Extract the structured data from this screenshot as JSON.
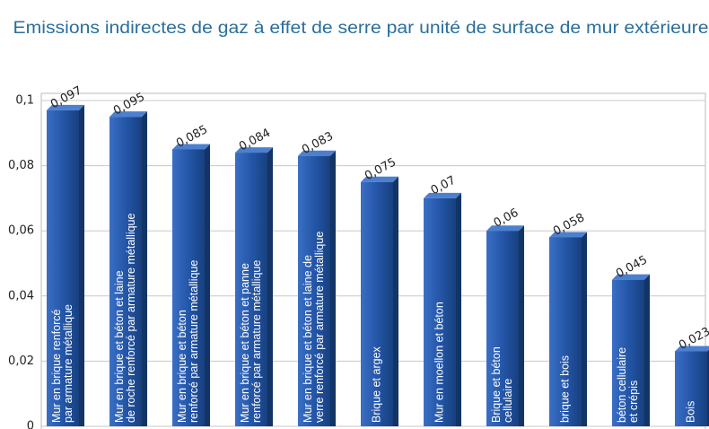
{
  "chart_data": {
    "type": "bar",
    "title": "Emissions  indirectes de gaz à effet de serre par unité de surface de mur extérieure",
    "categories": [
      [
        "Mur en brique renforcé",
        "par armature métallique"
      ],
      [
        "Mur en brique et béton et laine",
        "de roche renforcé par armature métallique"
      ],
      [
        "Mur en brique et béton",
        "renforcé par armature métallique"
      ],
      [
        "Mur en brique et béton et panne",
        "renforcé par armature métallique"
      ],
      [
        "Mur en brique et béton et laine de",
        "verre renforcé par armature métallique"
      ],
      [
        "Brique et argex"
      ],
      [
        "Mur en moellon et béton"
      ],
      [
        "Brique et béton",
        "cellulaire"
      ],
      [
        "brique et bois"
      ],
      [
        "béton cellulaire",
        "et crépis"
      ],
      [
        "Bois"
      ]
    ],
    "values": [
      0.097,
      0.095,
      0.085,
      0.084,
      0.083,
      0.075,
      0.07,
      0.06,
      0.058,
      0.045,
      0.023
    ],
    "value_labels": [
      "0,097",
      "0,095",
      "0,085",
      "0,084",
      "0,083",
      "0,075",
      "0,07",
      "0,06",
      "0,058",
      "0,045",
      "0,023"
    ],
    "color": "#2456a8",
    "ylim": [
      0,
      0.1
    ],
    "yticks": [
      0,
      {
        "value": 0.02,
        "label": "0,02"
      },
      {
        "value": 0.04,
        "label": "0,04"
      },
      {
        "value": 0.06,
        "label": "0,06"
      },
      {
        "value": 0.08,
        "label": "0,08"
      },
      {
        "value": 0.1,
        "label": "0,1"
      }
    ],
    "grid": true
  }
}
